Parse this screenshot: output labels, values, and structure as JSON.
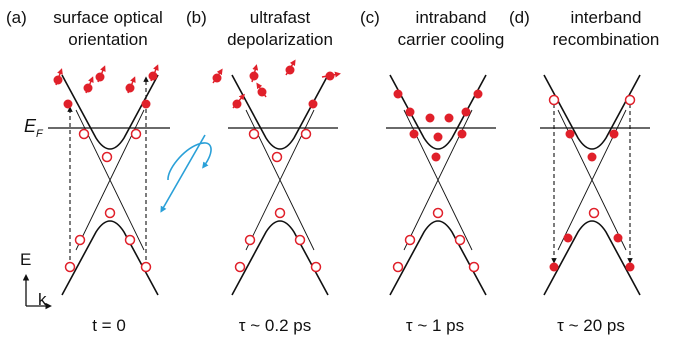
{
  "panels": [
    {
      "letter": "(a)",
      "title_line1": "surface optical",
      "title_line2": "orientation",
      "time": "t = 0"
    },
    {
      "letter": "(b)",
      "title_line1": "ultrafast",
      "title_line2": "depolarization",
      "time": "τ ~ 0.2 ps"
    },
    {
      "letter": "(c)",
      "title_line1": "intraband",
      "title_line2": "carrier cooling",
      "time": "τ ~ 1 ps"
    },
    {
      "letter": "(d)",
      "title_line1": "interband",
      "title_line2": "recombination",
      "time": "τ ~ 20 ps"
    }
  ],
  "axis": {
    "fermi_main": "E",
    "fermi_sub": "F",
    "energy": "E",
    "momentum": "k"
  },
  "colors": {
    "electron": "#e0202a",
    "helicity": "#2aa0d8",
    "band": "#111111"
  }
}
